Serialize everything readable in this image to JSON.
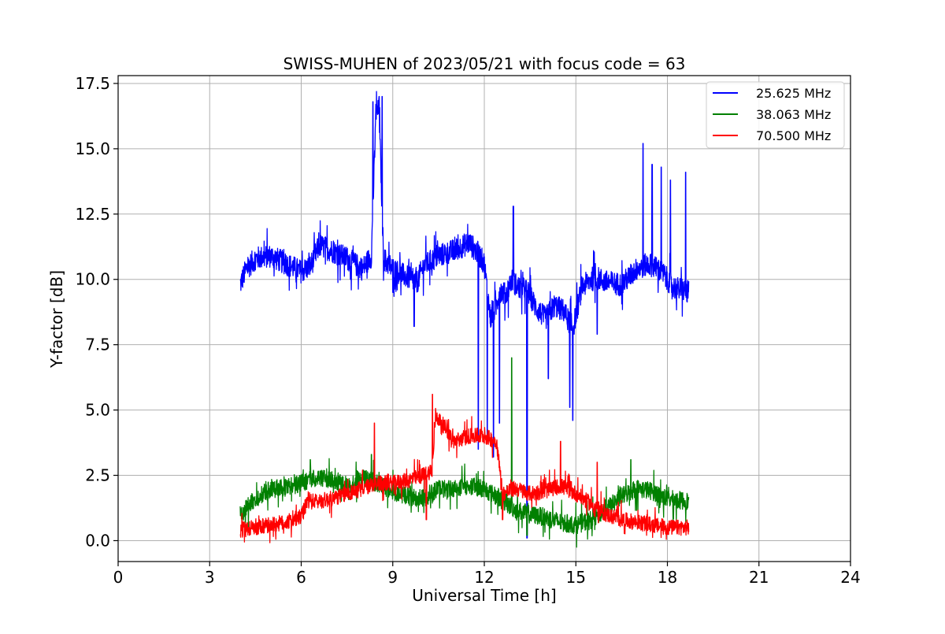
{
  "chart_data": {
    "type": "line",
    "title": "SWISS-MUHEN of 2023/05/21 with focus code = 63",
    "xlabel": "Universal Time [h]",
    "ylabel": "Y-factor [dB]",
    "xlim": [
      0,
      24
    ],
    "ylim": [
      -0.8,
      17.8
    ],
    "xticks": [
      0,
      3,
      6,
      9,
      12,
      15,
      18,
      21,
      24
    ],
    "xtick_labels": [
      "0",
      "3",
      "6",
      "9",
      "12",
      "15",
      "18",
      "21",
      "24"
    ],
    "yticks": [
      0.0,
      2.5,
      5.0,
      7.5,
      10.0,
      12.5,
      15.0,
      17.5
    ],
    "ytick_labels": [
      "0.0",
      "2.5",
      "5.0",
      "7.5",
      "10.0",
      "12.5",
      "15.0",
      "17.5"
    ],
    "grid": true,
    "legend_position": "top-right",
    "series": [
      {
        "name": "25.625 MHz",
        "color": "#0000ff",
        "x": [
          4.0,
          4.2,
          4.5,
          5.0,
          5.5,
          6.0,
          6.3,
          6.6,
          7.0,
          7.5,
          8.0,
          8.3,
          8.45,
          8.55,
          8.7,
          9.0,
          9.3,
          9.6,
          9.8,
          10.0,
          10.5,
          11.0,
          11.5,
          11.8,
          12.0,
          12.2,
          12.4,
          12.5,
          12.7,
          12.9,
          13.1,
          13.4,
          13.7,
          14.0,
          14.3,
          14.6,
          14.9,
          15.2,
          15.6,
          16.0,
          16.5,
          17.0,
          17.4,
          17.8,
          18.2,
          18.7
        ],
        "y": [
          9.8,
          10.4,
          10.8,
          10.9,
          10.6,
          10.3,
          10.5,
          11.3,
          11.1,
          10.8,
          10.4,
          10.9,
          16.3,
          16.5,
          10.8,
          10.4,
          10.2,
          10.0,
          9.9,
          10.5,
          10.9,
          11.1,
          11.4,
          11.0,
          10.6,
          8.5,
          9.0,
          9.6,
          9.4,
          10.0,
          9.7,
          9.6,
          8.9,
          8.5,
          9.0,
          8.8,
          8.1,
          9.7,
          10.1,
          9.9,
          9.8,
          10.4,
          10.6,
          10.3,
          9.7,
          9.5
        ],
        "spikes": [
          [
            8.35,
            16.8
          ],
          [
            8.45,
            16.7
          ],
          [
            8.55,
            17.0
          ],
          [
            8.65,
            17.0
          ],
          [
            9.0,
            9.5
          ],
          [
            9.7,
            8.2
          ],
          [
            11.8,
            3.5
          ],
          [
            12.1,
            4.0
          ],
          [
            12.3,
            3.2
          ],
          [
            12.5,
            4.5
          ],
          [
            12.95,
            12.8
          ],
          [
            13.4,
            0.1
          ],
          [
            14.1,
            6.2
          ],
          [
            14.8,
            5.1
          ],
          [
            14.9,
            4.6
          ],
          [
            15.7,
            7.9
          ],
          [
            17.2,
            15.2
          ],
          [
            17.5,
            14.4
          ],
          [
            17.8,
            14.3
          ],
          [
            18.1,
            13.8
          ],
          [
            18.6,
            14.1
          ]
        ]
      },
      {
        "name": "38.063 MHz",
        "color": "#008000",
        "x": [
          4.0,
          4.5,
          5.0,
          5.5,
          6.0,
          6.5,
          7.0,
          7.5,
          8.0,
          8.5,
          9.0,
          9.5,
          10.0,
          10.5,
          11.0,
          11.5,
          12.0,
          12.5,
          13.0,
          13.5,
          14.0,
          14.5,
          15.0,
          15.5,
          16.0,
          16.5,
          17.0,
          17.5,
          18.0,
          18.7
        ],
        "y": [
          1.0,
          1.6,
          2.0,
          2.0,
          2.2,
          2.4,
          2.3,
          2.1,
          2.4,
          2.2,
          1.9,
          1.7,
          1.6,
          2.0,
          2.0,
          2.1,
          2.0,
          1.6,
          1.2,
          1.0,
          0.9,
          0.7,
          0.6,
          0.8,
          1.2,
          1.7,
          2.0,
          1.9,
          1.6,
          1.5
        ],
        "spikes": [
          [
            6.3,
            3.1
          ],
          [
            8.3,
            3.3
          ],
          [
            12.9,
            7.0
          ],
          [
            13.4,
            0.2
          ],
          [
            16.8,
            3.1
          ]
        ]
      },
      {
        "name": "70.500 MHz",
        "color": "#ff0000",
        "x": [
          4.0,
          4.5,
          5.0,
          5.5,
          6.0,
          6.2,
          6.5,
          7.0,
          7.5,
          8.0,
          8.5,
          9.0,
          9.5,
          10.0,
          10.3,
          10.4,
          10.8,
          11.0,
          11.5,
          12.0,
          12.4,
          12.6,
          13.0,
          13.5,
          14.0,
          14.5,
          15.0,
          15.5,
          16.0,
          16.5,
          17.0,
          17.5,
          18.0,
          18.7
        ],
        "y": [
          0.4,
          0.5,
          0.6,
          0.7,
          0.9,
          1.5,
          1.5,
          1.6,
          1.8,
          2.0,
          2.2,
          2.2,
          2.3,
          2.5,
          2.7,
          4.8,
          4.2,
          3.8,
          4.0,
          4.0,
          3.8,
          1.8,
          2.0,
          1.8,
          1.9,
          2.1,
          1.8,
          1.4,
          1.0,
          0.8,
          0.7,
          0.6,
          0.5,
          0.5
        ],
        "spikes": [
          [
            8.4,
            4.5
          ],
          [
            10.3,
            5.6
          ],
          [
            10.1,
            0.8
          ],
          [
            12.6,
            0.8
          ],
          [
            14.5,
            3.8
          ],
          [
            15.7,
            3.0
          ]
        ]
      }
    ]
  }
}
